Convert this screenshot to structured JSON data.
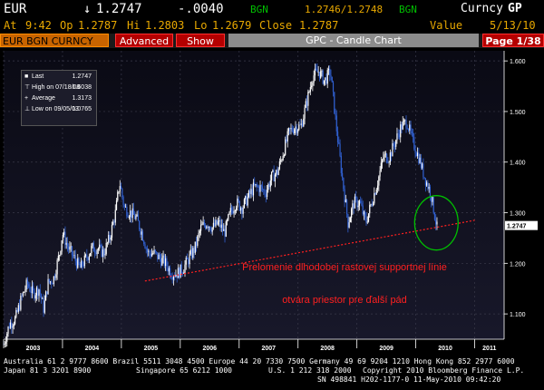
{
  "header": {
    "ticker": "EUR",
    "arrow": "↓",
    "price": "1.2747",
    "change": "-.0040",
    "source1": "BGN",
    "bidask": "1.2746/1.2748",
    "source2": "BGN",
    "brand_prefix": "Curncy",
    "brand_suffix": "GP"
  },
  "subheader": {
    "time_label": "At",
    "time": "9:42",
    "op_label": "Op",
    "op": "1.2787",
    "hi_label": "Hi",
    "hi": "1.2803",
    "lo_label": "Lo",
    "lo": "1.2679",
    "close_label": "Close",
    "close": "1.2787",
    "value_label": "Value",
    "date": "5/13/10"
  },
  "toolbar": {
    "security": "EUR BGN CURNCY",
    "advanced": "Advanced",
    "show": "Show",
    "title": "GPC - Candle Chart",
    "page": "Page 1/38"
  },
  "legend": {
    "last_label": "Last",
    "last_value": "1.2747",
    "high_label": "High on 07/18/08",
    "high_value": "1.6038",
    "avg_label": "Average",
    "avg_value": "1.3173",
    "low_label": "Low on 09/05/03",
    "low_value": "1.0765"
  },
  "annotation": {
    "line1": "Prelomenie dlhodobej rastovej supportnej línie",
    "line2": "otvára priestor pre ďalší pád"
  },
  "footer": {
    "line1": "Australia 61 2 9777 8600 Brazil 5511 3048 4500 Europe 44 20 7330 7500 Germany 49 69 9204 1210 Hong Kong 852 2977 6000",
    "line2a": "Japan 81 3 3201 8900",
    "line2b": "Singapore 65 6212 1000",
    "line2c": "U.S. 1 212 318 2000",
    "line2d": "Copyright 2010 Bloomberg Finance L.P.",
    "line3": "SN 498841 H202-1177-0 11-May-2010 09:42:20"
  },
  "colors": {
    "orange": "#e8a800",
    "green": "#00c000",
    "red": "#ff2020",
    "candle_up": "#ffffff",
    "candle_down": "#3060d0",
    "panel_bg": "#0c0c1c"
  },
  "chart_data": {
    "type": "line",
    "style": "candlestick",
    "title": "GPC - Candle Chart",
    "xlabel": "",
    "ylabel": "",
    "ylim": [
      1.05,
      1.62
    ],
    "xlim": [
      2003.0,
      2011.5
    ],
    "x_ticks": [
      "2003",
      "2004",
      "2005",
      "2006",
      "2007",
      "2008",
      "2009",
      "2010",
      "2011"
    ],
    "y_ticks": [
      "1.100",
      "1.200",
      "1.300",
      "1.400",
      "1.500",
      "1.600"
    ],
    "last_value_label": "1.2747",
    "grid": true,
    "series": [
      {
        "x": [
          2003.0,
          2003.1,
          2003.2,
          2003.3,
          2003.4,
          2003.5,
          2003.6,
          2003.68,
          2003.75,
          2003.85,
          2003.95,
          2004.0,
          2004.1,
          2004.2,
          2004.3,
          2004.4,
          2004.5,
          2004.6,
          2004.7,
          2004.8,
          2004.9,
          2004.97,
          2005.05,
          2005.15,
          2005.25,
          2005.35,
          2005.45,
          2005.55,
          2005.65,
          2005.75,
          2005.85,
          2005.95,
          2006.05,
          2006.15,
          2006.25,
          2006.35,
          2006.45,
          2006.55,
          2006.65,
          2006.75,
          2006.85,
          2006.95,
          2007.05,
          2007.15,
          2007.25,
          2007.35,
          2007.45,
          2007.55,
          2007.65,
          2007.75,
          2007.85,
          2007.95,
          2008.05,
          2008.15,
          2008.25,
          2008.35,
          2008.45,
          2008.55,
          2008.65,
          2008.75,
          2008.85,
          2008.95,
          2009.05,
          2009.15,
          2009.25,
          2009.35,
          2009.45,
          2009.55,
          2009.65,
          2009.75,
          2009.85,
          2009.95,
          2010.05,
          2010.15,
          2010.25,
          2010.36
        ],
        "values": [
          1.04,
          1.08,
          1.09,
          1.13,
          1.16,
          1.14,
          1.15,
          1.11,
          1.16,
          1.17,
          1.22,
          1.26,
          1.23,
          1.21,
          1.19,
          1.21,
          1.23,
          1.23,
          1.22,
          1.25,
          1.3,
          1.36,
          1.31,
          1.3,
          1.29,
          1.26,
          1.22,
          1.22,
          1.21,
          1.2,
          1.18,
          1.18,
          1.19,
          1.21,
          1.23,
          1.27,
          1.28,
          1.27,
          1.28,
          1.26,
          1.3,
          1.32,
          1.31,
          1.33,
          1.35,
          1.35,
          1.34,
          1.37,
          1.38,
          1.42,
          1.46,
          1.47,
          1.47,
          1.52,
          1.57,
          1.58,
          1.56,
          1.58,
          1.47,
          1.37,
          1.28,
          1.32,
          1.32,
          1.28,
          1.32,
          1.36,
          1.41,
          1.41,
          1.44,
          1.47,
          1.48,
          1.44,
          1.41,
          1.37,
          1.34,
          1.27
        ]
      }
    ],
    "trendline": {
      "x": [
        2005.4,
        2011.0
      ],
      "values": [
        1.165,
        1.285
      ]
    },
    "circle_marker": {
      "x": 2010.35,
      "value": 1.28
    },
    "annotations": [
      "Prelomenie dlhodobej rastovej supportnej línie",
      "otvára priestor pre ďalší pád"
    ]
  }
}
